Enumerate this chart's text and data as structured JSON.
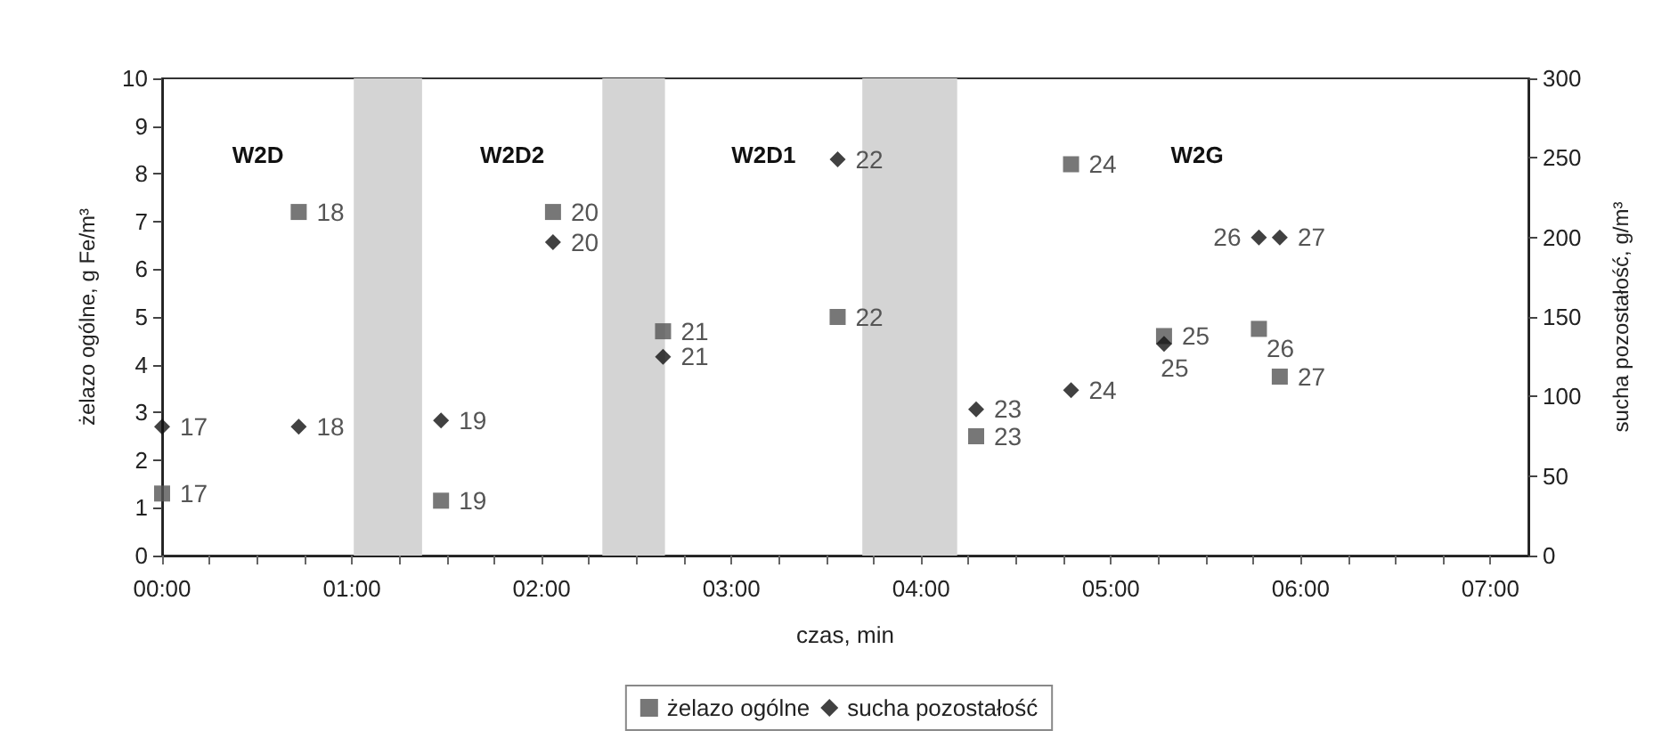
{
  "chart_data": {
    "type": "scatter",
    "xlabel": "czas, min",
    "ylabel": "żelazo ogólne, g Fe/m³",
    "y2label": "sucha pozostałość, g/m³",
    "xlim": [
      0,
      7.2
    ],
    "xticks": [
      {
        "value": 0,
        "label": "00:00"
      },
      {
        "value": 0.25,
        "label": null
      },
      {
        "value": 0.5,
        "label": null
      },
      {
        "value": 0.75,
        "label": null
      },
      {
        "value": 1,
        "label": "01:00"
      },
      {
        "value": 1.25,
        "label": null
      },
      {
        "value": 1.5,
        "label": null
      },
      {
        "value": 1.75,
        "label": null
      },
      {
        "value": 2,
        "label": "02:00"
      },
      {
        "value": 2.25,
        "label": null
      },
      {
        "value": 2.5,
        "label": null
      },
      {
        "value": 2.75,
        "label": null
      },
      {
        "value": 3,
        "label": "03:00"
      },
      {
        "value": 3.25,
        "label": null
      },
      {
        "value": 3.5,
        "label": null
      },
      {
        "value": 3.75,
        "label": null
      },
      {
        "value": 4,
        "label": "04:00"
      },
      {
        "value": 4.25,
        "label": null
      },
      {
        "value": 4.5,
        "label": null
      },
      {
        "value": 4.75,
        "label": null
      },
      {
        "value": 5,
        "label": "05:00"
      },
      {
        "value": 5.25,
        "label": null
      },
      {
        "value": 5.5,
        "label": null
      },
      {
        "value": 5.75,
        "label": null
      },
      {
        "value": 6,
        "label": "06:00"
      },
      {
        "value": 6.25,
        "label": null
      },
      {
        "value": 6.5,
        "label": null
      },
      {
        "value": 6.75,
        "label": null
      },
      {
        "value": 7,
        "label": "07:00"
      }
    ],
    "ylim": [
      0,
      10
    ],
    "yticks": [
      0,
      1,
      2,
      3,
      4,
      5,
      6,
      7,
      8,
      9,
      10
    ],
    "y2lim": [
      0,
      300
    ],
    "y2ticks": [
      0,
      50,
      100,
      150,
      200,
      250,
      300
    ],
    "x": [
      0,
      0.72,
      1.47,
      2.06,
      2.64,
      3.56,
      4.29,
      4.79,
      5.28,
      5.78,
      5.89
    ],
    "series": [
      {
        "name": "żelazo ogólne",
        "color": "#555555",
        "marker": "square",
        "values": [
          1.3,
          7.2,
          1.15,
          7.2,
          4.7,
          5.0,
          2.5,
          8.2,
          4.6,
          4.75,
          3.75
        ]
      },
      {
        "name": "sucha pozostałość",
        "color": "#111111",
        "marker": "diamond",
        "axis": "y2",
        "values": [
          81,
          81,
          85,
          197,
          125,
          249,
          92,
          104,
          133,
          200,
          200
        ]
      }
    ],
    "bands": [
      {
        "axis": "x",
        "from": 1.01,
        "to": 1.37,
        "color": "#d4d4d4"
      },
      {
        "axis": "x",
        "from": 2.32,
        "to": 2.65,
        "color": "#d4d4d4"
      },
      {
        "axis": "x",
        "from": 3.69,
        "to": 4.19,
        "color": "#d4d4d4"
      }
    ],
    "annotations": [
      "W2D",
      "W2D2",
      "W2D1",
      "W2G",
      {
        "text": "17",
        "x": 0,
        "y": 1.3
      },
      {
        "text": "18",
        "x": 0.72,
        "y": 7.2
      },
      {
        "text": "19",
        "x": 1.47,
        "y": 1.15
      },
      {
        "text": "20",
        "x": 2.06,
        "y": 7.2
      },
      {
        "text": "21",
        "x": 2.64,
        "y": 4.7
      },
      {
        "text": "22",
        "x": 3.56,
        "y": 5.0
      },
      {
        "text": "23",
        "x": 4.29,
        "y": 2.5
      },
      {
        "text": "24",
        "x": 4.79,
        "y": 8.2
      },
      {
        "text": "25",
        "x": 5.28,
        "y": 4.6
      },
      {
        "text": "26",
        "x": 5.78,
        "y": 4.75
      },
      {
        "text": "27",
        "x": 5.89,
        "y": 3.75
      },
      {
        "text": "17",
        "x": 0,
        "y": 2.7
      },
      {
        "text": "18",
        "x": 0.72,
        "y": 2.7
      },
      {
        "text": "19",
        "x": 1.47,
        "y": 2.83
      },
      {
        "text": "20",
        "x": 2.06,
        "y": 6.57
      },
      {
        "text": "21",
        "x": 2.64,
        "y": 4.17
      },
      {
        "text": "22",
        "x": 3.56,
        "y": 8.3
      },
      {
        "text": "23",
        "x": 4.29,
        "y": 3.07
      },
      {
        "text": "24",
        "x": 4.79,
        "y": 3.47
      },
      {
        "text": "25",
        "x": 5.28,
        "y": 4.43
      },
      {
        "text": "26",
        "x": 5.78,
        "y": 6.67
      },
      {
        "text": "27",
        "x": 5.89,
        "y": 6.67
      }
    ],
    "grid": false,
    "legend": "bottom"
  }
}
